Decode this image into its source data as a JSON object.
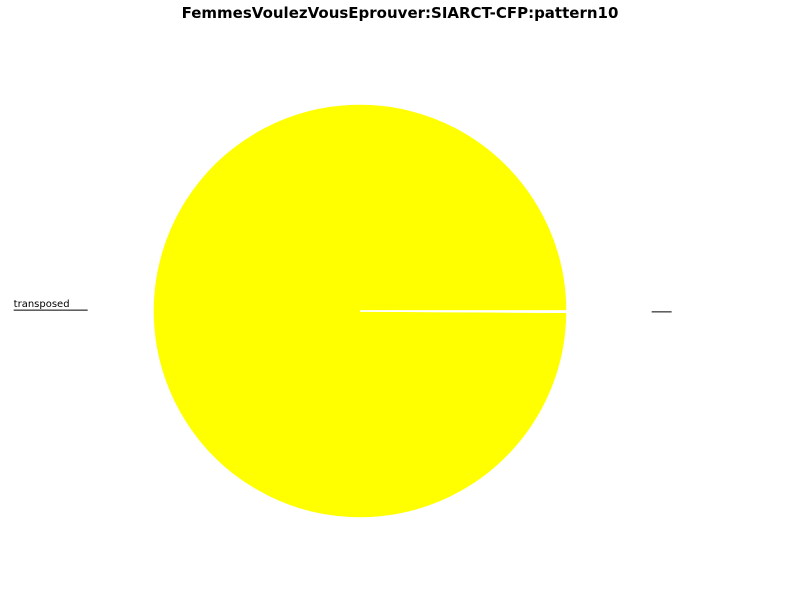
{
  "chart_data": {
    "type": "pie",
    "title": "FemmesVoulezVousEprouver:SIARCT-CFP:pattern10",
    "slices": [
      {
        "label": "transposed",
        "value": 99.9,
        "color": "#ffff00"
      },
      {
        "label": "",
        "value": 0.1,
        "color": "#ffff00"
      }
    ],
    "start_angle": 0,
    "direction": "counterclockwise",
    "legend": "none"
  }
}
